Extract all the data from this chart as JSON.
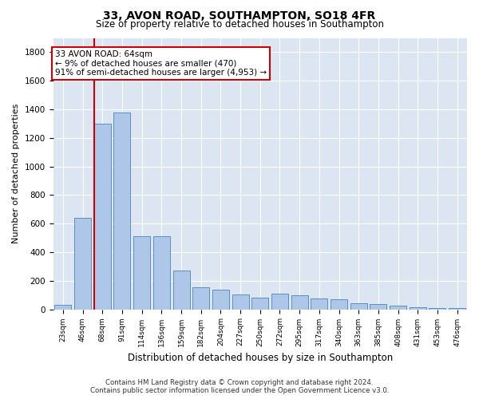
{
  "title1": "33, AVON ROAD, SOUTHAMPTON, SO18 4FR",
  "title2": "Size of property relative to detached houses in Southampton",
  "xlabel": "Distribution of detached houses by size in Southampton",
  "ylabel": "Number of detached properties",
  "categories": [
    "23sqm",
    "46sqm",
    "68sqm",
    "91sqm",
    "114sqm",
    "136sqm",
    "159sqm",
    "182sqm",
    "204sqm",
    "227sqm",
    "250sqm",
    "272sqm",
    "295sqm",
    "317sqm",
    "340sqm",
    "363sqm",
    "385sqm",
    "408sqm",
    "431sqm",
    "453sqm",
    "476sqm"
  ],
  "values": [
    30,
    640,
    1300,
    1380,
    510,
    510,
    270,
    155,
    140,
    105,
    80,
    110,
    100,
    75,
    70,
    45,
    35,
    25,
    15,
    10,
    10
  ],
  "bar_color": "#aec6e8",
  "bar_edge_color": "#5a8fc0",
  "vline_color": "#cc0000",
  "vline_x_index": 1.57,
  "annotation_text": "33 AVON ROAD: 64sqm\n← 9% of detached houses are smaller (470)\n91% of semi-detached houses are larger (4,953) →",
  "annotation_box_color": "#ffffff",
  "annotation_box_edge": "#cc0000",
  "bg_color": "#ffffff",
  "plot_bg_color": "#dce6f2",
  "grid_color": "#ffffff",
  "ylim": [
    0,
    1900
  ],
  "yticks": [
    0,
    200,
    400,
    600,
    800,
    1000,
    1200,
    1400,
    1600,
    1800
  ],
  "footer1": "Contains HM Land Registry data © Crown copyright and database right 2024.",
  "footer2": "Contains public sector information licensed under the Open Government Licence v3.0."
}
